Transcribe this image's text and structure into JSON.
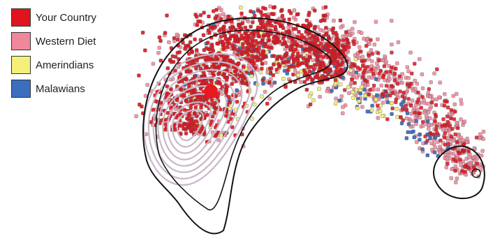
{
  "chart_data": {
    "type": "scatter",
    "title": "",
    "xlabel": "",
    "ylabel": "",
    "axes_visible": false,
    "grid": false,
    "legend_position": "top-left",
    "legend": [
      {
        "label": "Your Country",
        "color": "#e0141e"
      },
      {
        "label": "Western Diet",
        "color": "#f0879b"
      },
      {
        "label": "Amerindians",
        "color": "#f5f07a"
      },
      {
        "label": "Malawians",
        "color": "#3a6fc0"
      }
    ],
    "highlight_point": {
      "series": "Your Country",
      "color": "#e8191e"
    },
    "contours": {
      "inner_color": "#c8b8c8",
      "outer_color": "#111111"
    }
  }
}
